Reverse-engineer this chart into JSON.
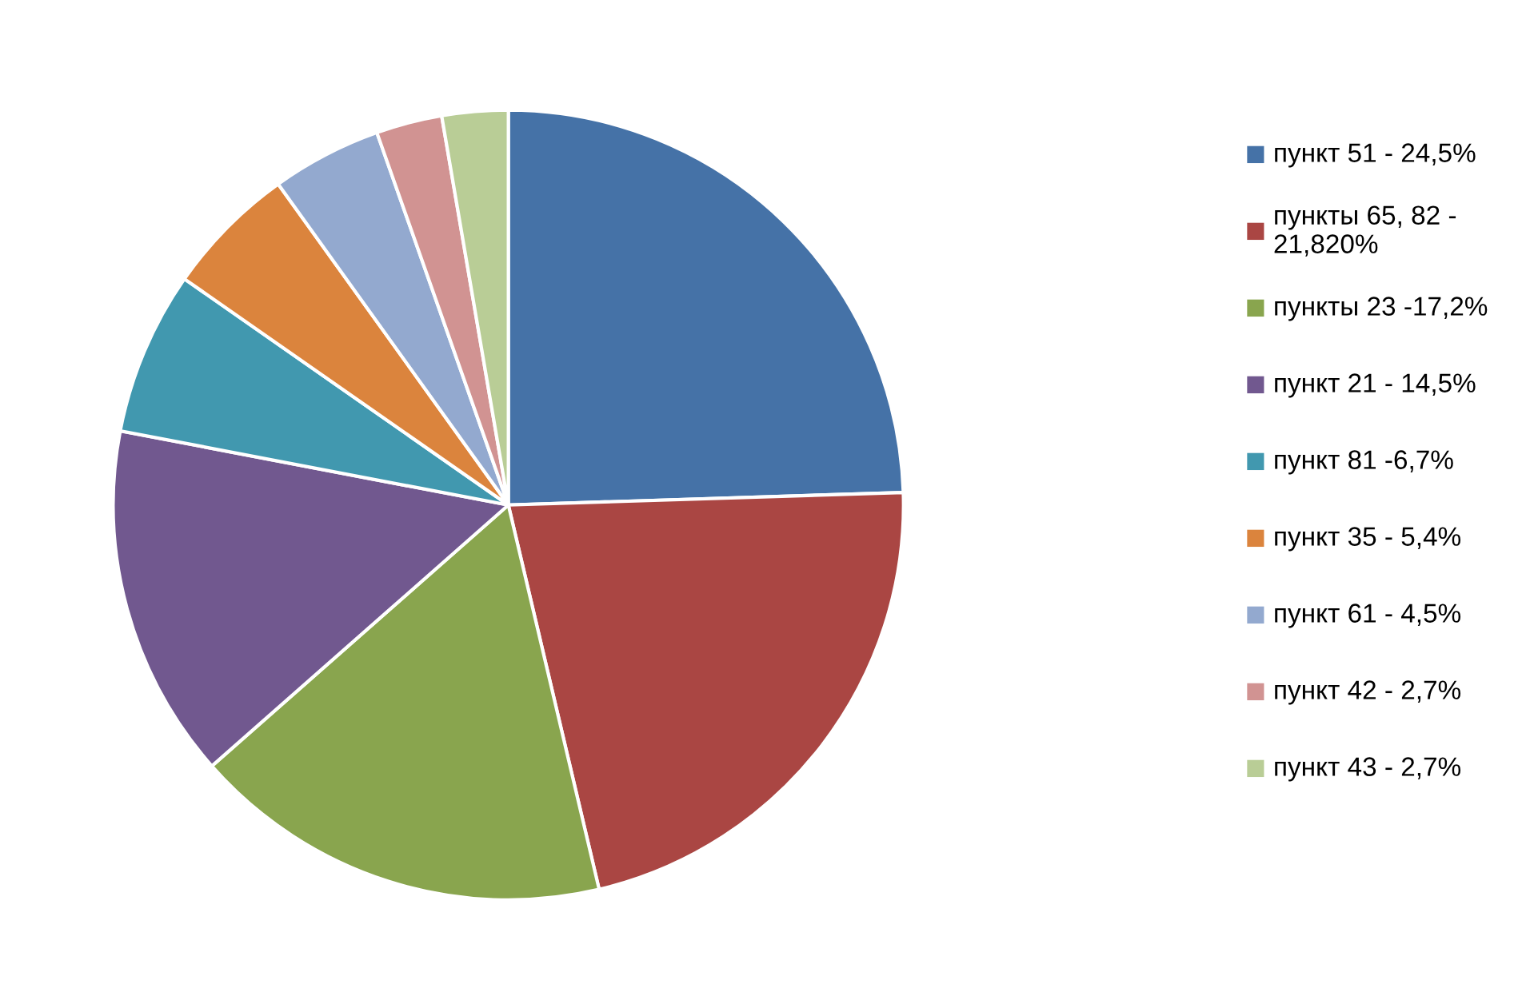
{
  "chart_data": {
    "type": "pie",
    "categories": [
      "пункт 51 - 24,5%",
      "пункты 65, 82 - 21,820%",
      "пункты 23 -17,2%",
      "пункт 21 - 14,5%",
      "пункт 81 -6,7%",
      "пункт 35 - 5,4%",
      "пункт 61 - 4,5%",
      "пункт 42 - 2,7%",
      "пункт 43 - 2,7%"
    ],
    "values": [
      24.5,
      21.82,
      17.2,
      14.5,
      6.7,
      5.4,
      4.5,
      2.7,
      2.7
    ],
    "colors": [
      "#4572a7",
      "#aa4643",
      "#89a54e",
      "#71588f",
      "#4198af",
      "#db843d",
      "#93a9cf",
      "#d19392",
      "#b9cd96"
    ],
    "legend": "right"
  }
}
